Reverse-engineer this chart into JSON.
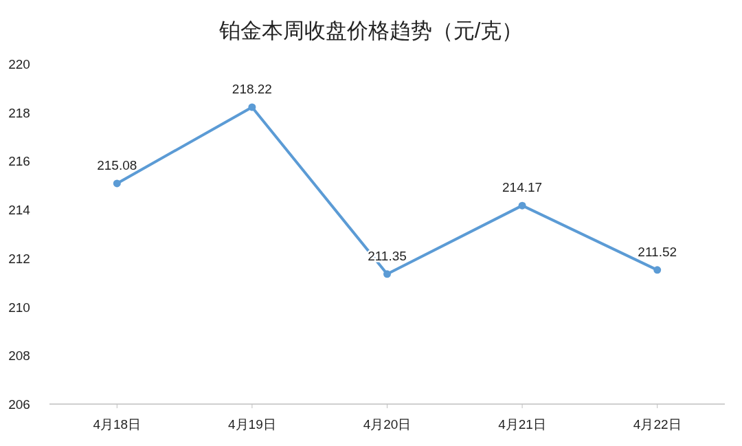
{
  "chart_data": {
    "type": "line",
    "title": "铂金本周收盘价格趋势（元/克）",
    "categories": [
      "4月18日",
      "4月19日",
      "4月20日",
      "4月21日",
      "4月22日"
    ],
    "series": [
      {
        "color": "#5b9bd5",
        "values": [
          215.08,
          218.22,
          211.35,
          214.17,
          211.52
        ]
      }
    ],
    "ylim": [
      206,
      220
    ],
    "yticks": [
      206,
      208,
      210,
      212,
      214,
      216,
      218,
      220
    ],
    "data_labels": true,
    "marker": "circle",
    "line_style": "solid",
    "grid": false
  }
}
